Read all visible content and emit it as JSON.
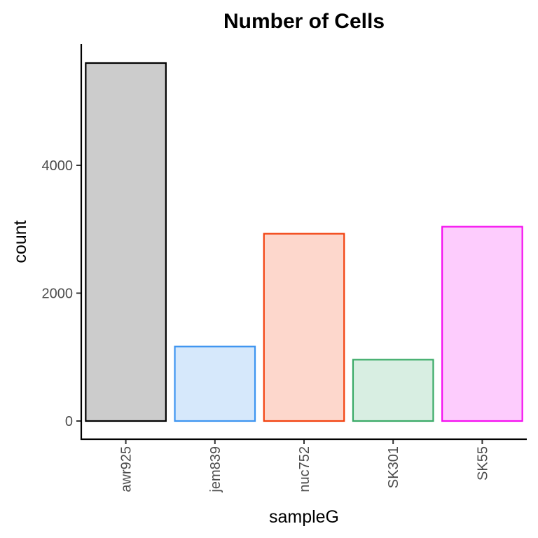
{
  "chart_data": {
    "type": "bar",
    "title": "Number of Cells",
    "xlabel": "sampleG",
    "ylabel": "count",
    "categories": [
      "awr925",
      "jem839",
      "nuc752",
      "SK301",
      "SK55"
    ],
    "values": [
      5600,
      1165,
      2930,
      960,
      3040
    ],
    "ylim": [
      -300,
      5900
    ],
    "yticks": [
      0,
      2000,
      4000
    ],
    "ytick_labels": [
      "0",
      "2000",
      "4000"
    ],
    "grid": false,
    "legend": "none",
    "bar_colors": [
      {
        "fill": "#cccccc",
        "stroke": "#000000"
      },
      {
        "fill": "#d6e8fb",
        "stroke": "#3d94f0"
      },
      {
        "fill": "#fdd7cc",
        "stroke": "#f2400e"
      },
      {
        "fill": "#d8eee2",
        "stroke": "#3aaa67"
      },
      {
        "fill": "#fdccfd",
        "stroke": "#f50ff0"
      }
    ]
  }
}
